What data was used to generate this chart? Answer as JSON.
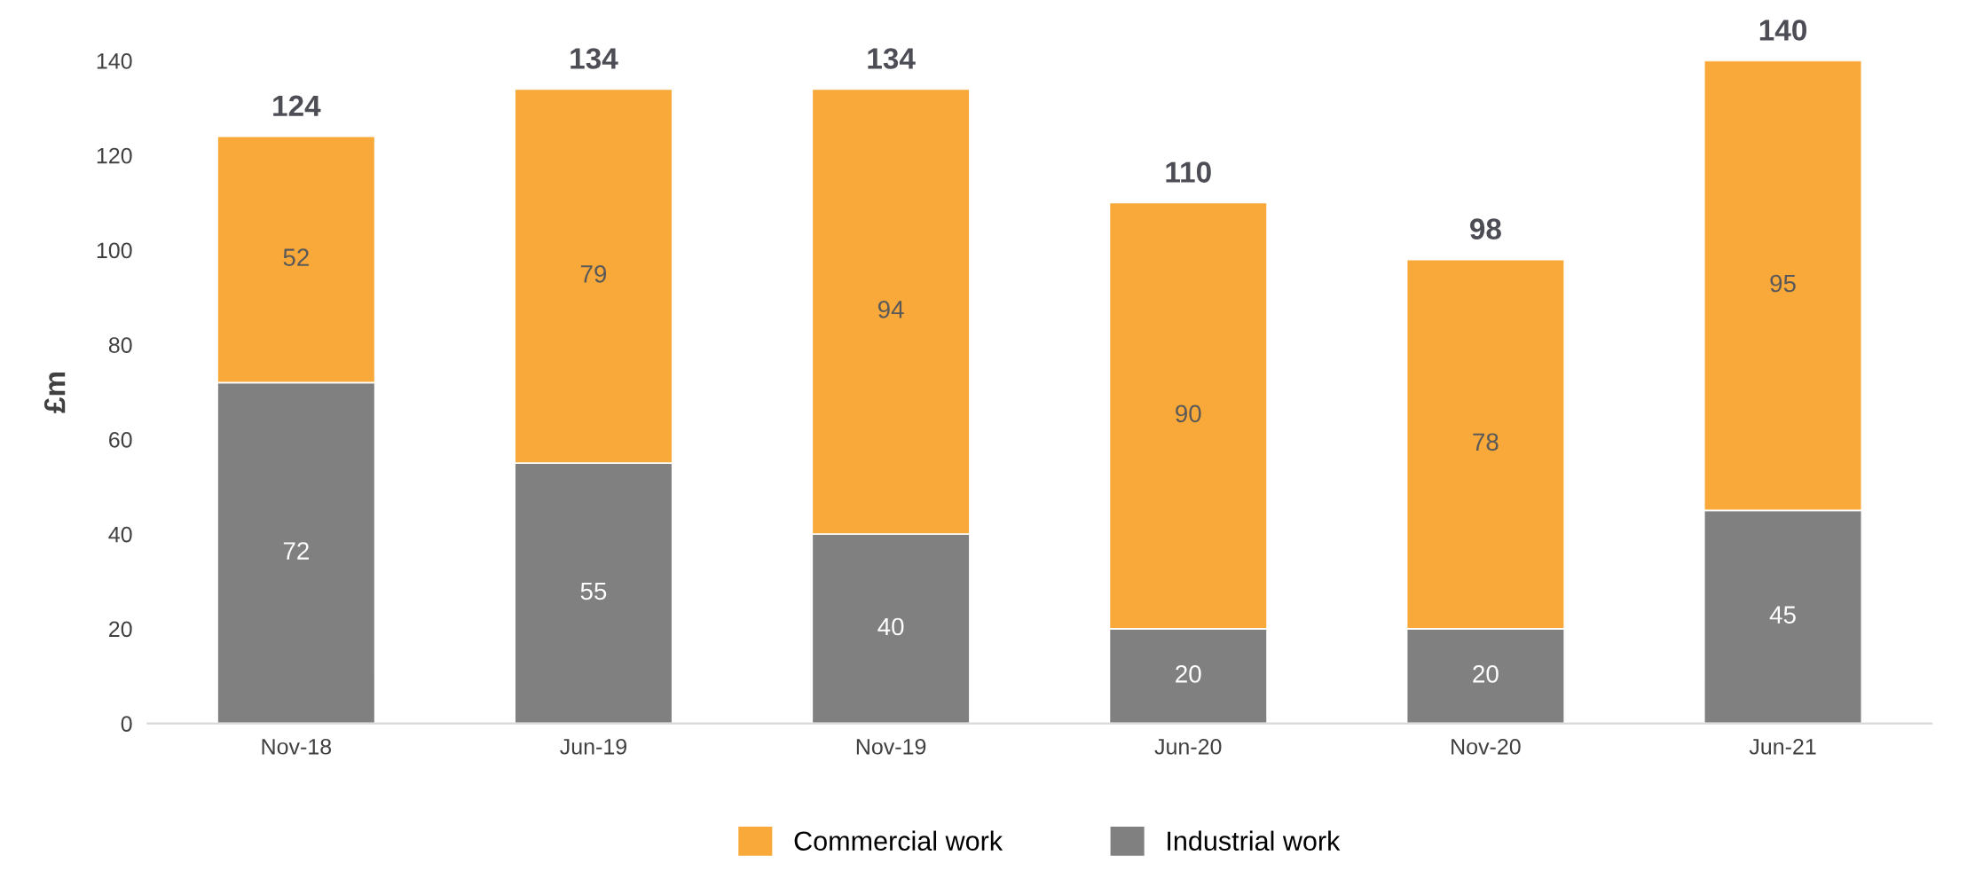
{
  "chart_data": {
    "type": "bar",
    "stacked": true,
    "ylabel": "£m",
    "categories": [
      "Nov-18",
      "Jun-19",
      "Nov-19",
      "Jun-20",
      "Nov-20",
      "Jun-21"
    ],
    "series": [
      {
        "name": "Industrial work",
        "color": "#808080",
        "values": [
          72,
          55,
          40,
          20,
          20,
          45
        ]
      },
      {
        "name": "Commercial work",
        "color": "#f9a93a",
        "values": [
          52,
          79,
          94,
          90,
          78,
          95
        ]
      }
    ],
    "totals": [
      "124",
      "134",
      "134",
      "110",
      "98",
      "140"
    ],
    "data_labels": true,
    "ylim": [
      0,
      140
    ],
    "yticks": [
      0,
      20,
      40,
      60,
      80,
      100,
      120,
      140
    ],
    "grid": false,
    "legend": "bottom"
  }
}
